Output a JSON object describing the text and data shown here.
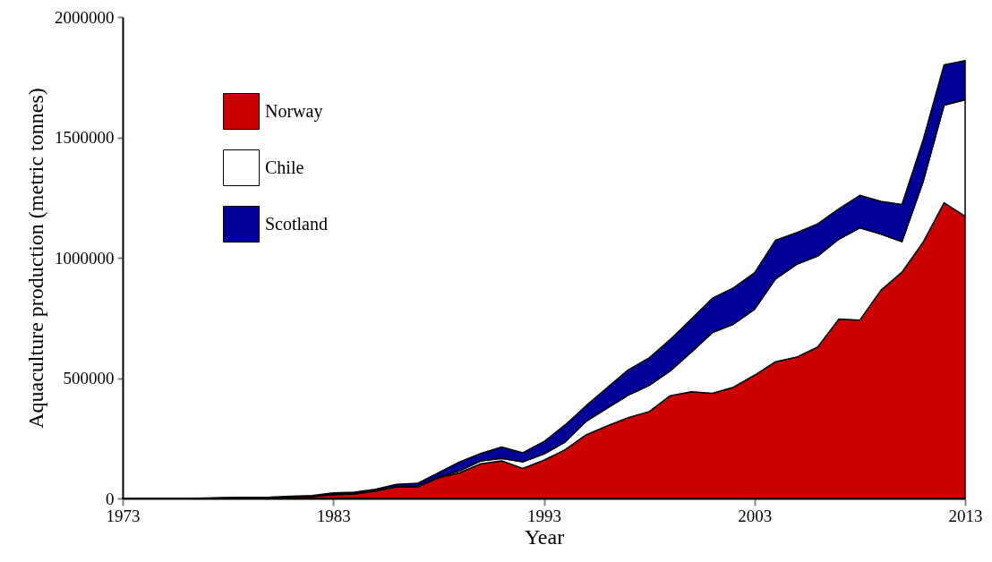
{
  "chart_data": {
    "type": "area",
    "stacked": true,
    "xlabel": "Year",
    "ylabel": "Aquaculture production (metric tonnes)",
    "x": [
      1973,
      1974,
      1975,
      1976,
      1977,
      1978,
      1979,
      1980,
      1981,
      1982,
      1983,
      1984,
      1985,
      1986,
      1987,
      1988,
      1989,
      1990,
      1991,
      1992,
      1993,
      1994,
      1995,
      1996,
      1997,
      1998,
      1999,
      2000,
      2001,
      2002,
      2003,
      2004,
      2005,
      2006,
      2007,
      2008,
      2009,
      2010,
      2011,
      2012,
      2013
    ],
    "series": [
      {
        "name": "Norway",
        "color": "#cc0000",
        "values": [
          0,
          0,
          0,
          0,
          1000,
          2000,
          3000,
          4000,
          6000,
          8000,
          16000,
          19000,
          31000,
          48000,
          48000,
          86000,
          107000,
          144000,
          156000,
          125000,
          159000,
          202000,
          264000,
          301000,
          336000,
          361000,
          427000,
          443000,
          437000,
          462000,
          512000,
          568000,
          587000,
          629000,
          745000,
          741000,
          865000,
          940000,
          1064000,
          1228000,
          1172000
        ]
      },
      {
        "name": "Chile",
        "color": "#ffffff",
        "values": [
          0,
          0,
          0,
          0,
          0,
          0,
          0,
          0,
          0,
          0,
          1000,
          1000,
          2000,
          1000,
          2000,
          3000,
          8000,
          12000,
          10000,
          27000,
          26000,
          32000,
          56000,
          74000,
          93000,
          109000,
          103000,
          165000,
          252000,
          262000,
          274000,
          344000,
          386000,
          378000,
          332000,
          383000,
          233000,
          127000,
          251000,
          406000,
          484000
        ]
      },
      {
        "name": "Scotland",
        "color": "#000099",
        "values": [
          0,
          0,
          0,
          0,
          1000,
          2000,
          2000,
          2000,
          3000,
          4000,
          6000,
          6000,
          5000,
          10000,
          13000,
          18000,
          37000,
          31000,
          48000,
          38000,
          51000,
          71000,
          65000,
          85000,
          105000,
          114000,
          131000,
          137000,
          143000,
          151000,
          151000,
          161000,
          131000,
          134000,
          126000,
          135000,
          136000,
          154000,
          173000,
          167000,
          163000
        ]
      }
    ],
    "xlim": [
      1973,
      2013
    ],
    "xticks": [
      1973,
      1983,
      1993,
      2003,
      2013
    ],
    "ylim": [
      0,
      2000000
    ],
    "yticks": [
      0,
      500000,
      1000000,
      1500000,
      2000000
    ],
    "legend": "top left",
    "grid": false
  }
}
